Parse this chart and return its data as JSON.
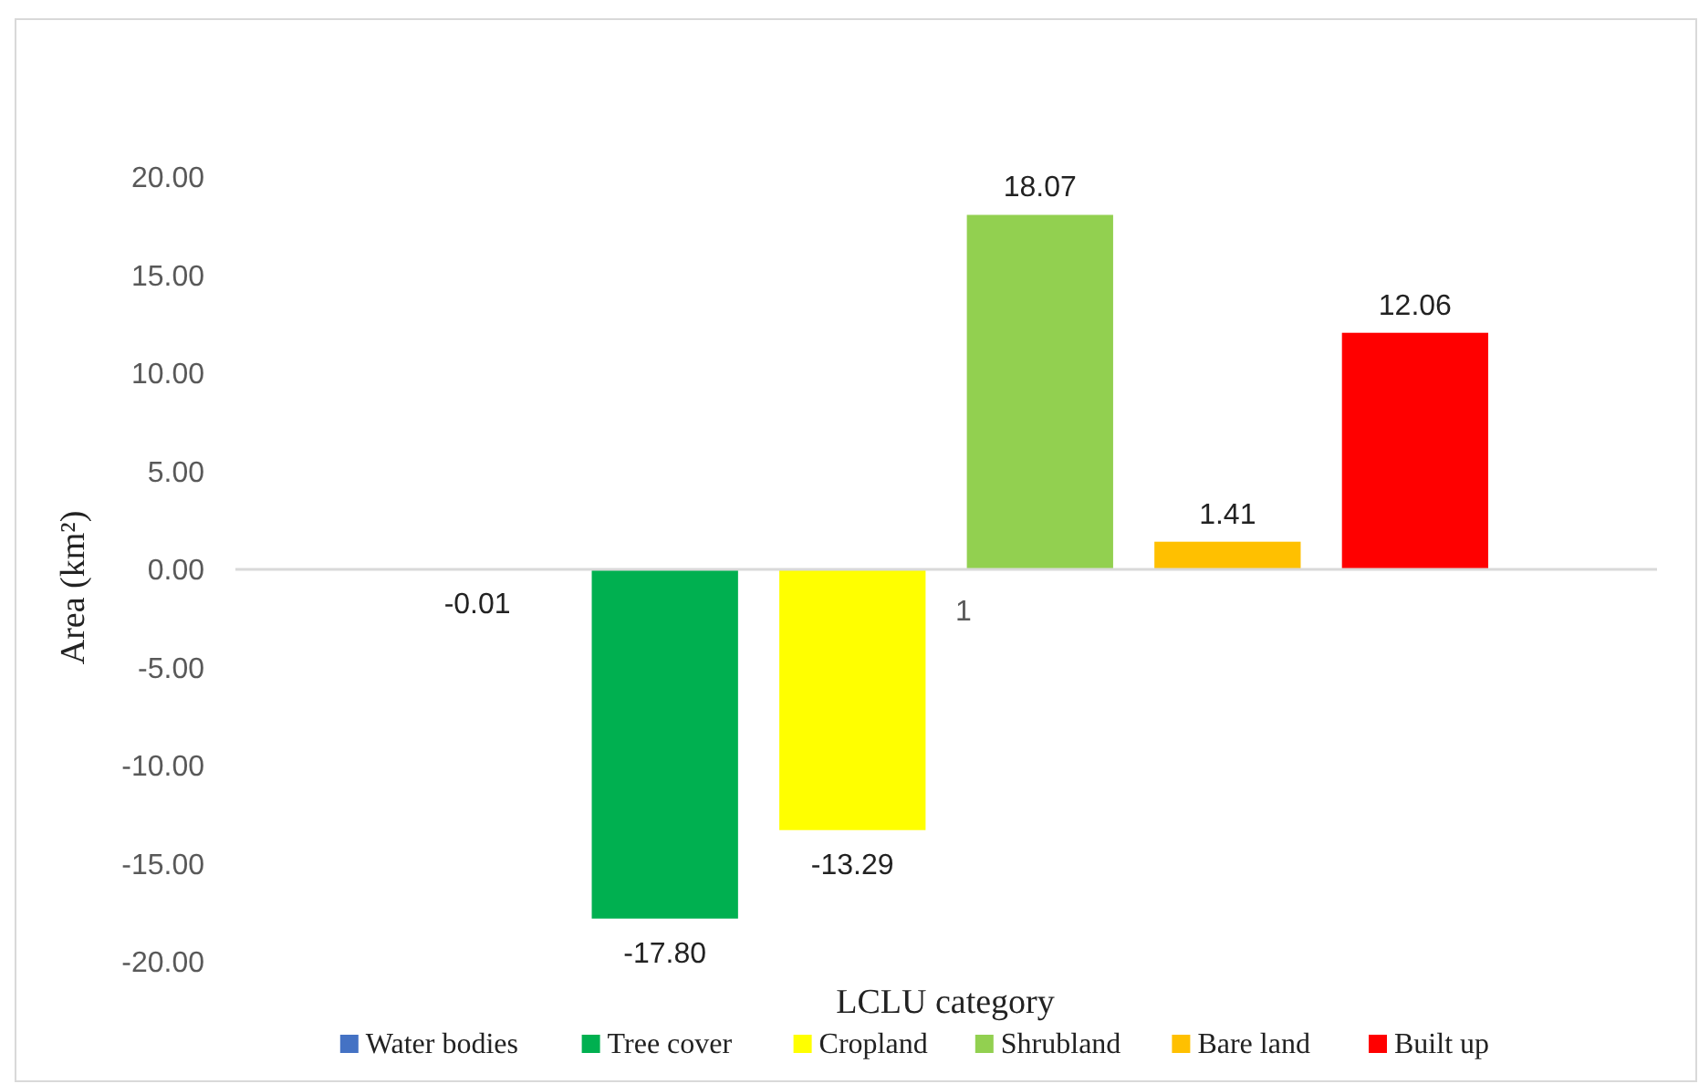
{
  "chart_data": {
    "type": "bar",
    "xlabel": "LCLU category",
    "ylabel": "Area (km²)",
    "categories": [
      "1"
    ],
    "series": [
      {
        "name": "Water bodies",
        "color": "#4472c4",
        "values": [
          -0.01
        ],
        "value_labels": [
          "-0.01"
        ]
      },
      {
        "name": "Tree cover",
        "color": "#00b050",
        "values": [
          -17.8
        ],
        "value_labels": [
          "-17.80"
        ]
      },
      {
        "name": "Cropland",
        "color": "#ffff00",
        "values": [
          -13.29
        ],
        "value_labels": [
          "-13.29"
        ]
      },
      {
        "name": "Shrubland",
        "color": "#92d050",
        "values": [
          18.07
        ],
        "value_labels": [
          "18.07"
        ]
      },
      {
        "name": "Bare land",
        "color": "#ffc000",
        "values": [
          1.41
        ],
        "value_labels": [
          "1.41"
        ]
      },
      {
        "name": "Built up",
        "color": "#ff0000",
        "values": [
          12.06
        ],
        "value_labels": [
          "12.06"
        ]
      }
    ],
    "ylim": [
      -20,
      20
    ],
    "yticks": [
      {
        "value": -20,
        "label": "-20.00"
      },
      {
        "value": -15,
        "label": "-15.00"
      },
      {
        "value": -10,
        "label": "-10.00"
      },
      {
        "value": -5,
        "label": "-5.00"
      },
      {
        "value": 0,
        "label": "0.00"
      },
      {
        "value": 5,
        "label": "5.00"
      },
      {
        "value": 10,
        "label": "10.00"
      },
      {
        "value": 15,
        "label": "15.00"
      },
      {
        "value": 20,
        "label": "20.00"
      }
    ],
    "legend": "bottom"
  }
}
